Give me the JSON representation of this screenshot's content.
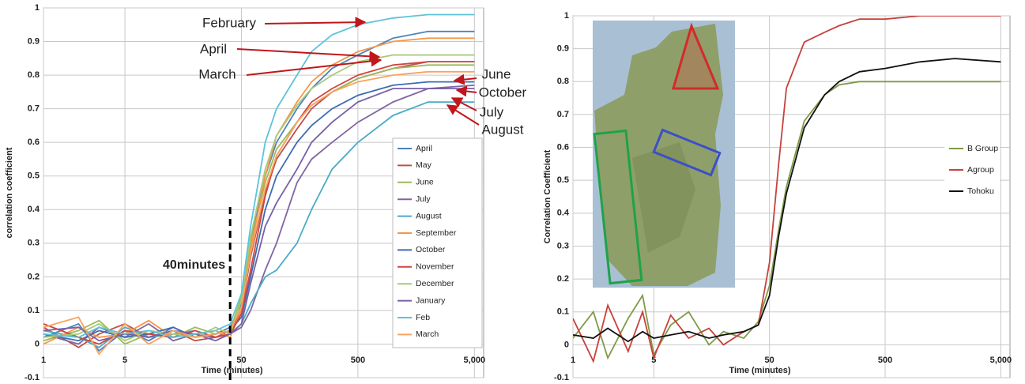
{
  "chart_data": [
    {
      "type": "line",
      "xlabel": "Time (minutes)",
      "ylabel": "correlation coefficient",
      "xlog": true,
      "grid": true,
      "legend": "right",
      "xlim": [
        1,
        6000
      ],
      "ylim": [
        -0.1,
        1
      ],
      "xticks": [
        1,
        5,
        50,
        500,
        {
          "value": 5000,
          "label": "5,000"
        }
      ],
      "yticks": [
        -0.1,
        0,
        0.1,
        0.2,
        0.3,
        0.4,
        0.5,
        0.6,
        0.7,
        0.8,
        0.9,
        1
      ],
      "vline": 40,
      "vline_label": "40minutes",
      "annotations": [
        "February",
        "April",
        "March",
        "June",
        "October",
        "July",
        "August"
      ],
      "x": [
        1,
        2,
        3,
        5,
        8,
        13,
        20,
        30,
        40,
        50,
        60,
        80,
        100,
        150,
        200,
        300,
        500,
        1000,
        2000,
        5000
      ],
      "series": [
        {
          "name": "April",
          "color": "#4f81bd",
          "values": [
            0.02,
            0.06,
            -0.02,
            0.04,
            0.01,
            0.05,
            0.02,
            0.03,
            0.05,
            0.12,
            0.3,
            0.5,
            0.6,
            0.7,
            0.76,
            0.82,
            0.86,
            0.91,
            0.93,
            0.93
          ]
        },
        {
          "name": "May",
          "color": "#c0504d",
          "values": [
            0.05,
            -0.01,
            0.03,
            0.06,
            0.02,
            0.04,
            0.01,
            0.02,
            0.04,
            0.1,
            0.26,
            0.45,
            0.55,
            0.64,
            0.7,
            0.75,
            0.79,
            0.82,
            0.84,
            0.84
          ]
        },
        {
          "name": "June",
          "color": "#9bbb59",
          "values": [
            0.01,
            0.04,
            0.07,
            0.0,
            0.03,
            0.02,
            0.05,
            0.03,
            0.04,
            0.14,
            0.3,
            0.48,
            0.58,
            0.66,
            0.71,
            0.75,
            0.79,
            0.82,
            0.83,
            0.83
          ]
        },
        {
          "name": "July",
          "color": "#8064a2",
          "values": [
            0.03,
            0.0,
            0.05,
            0.02,
            0.06,
            0.01,
            0.03,
            0.02,
            0.03,
            0.05,
            0.1,
            0.22,
            0.3,
            0.48,
            0.55,
            0.6,
            0.66,
            0.72,
            0.76,
            0.77
          ]
        },
        {
          "name": "August",
          "color": "#4bacc6",
          "values": [
            0.04,
            0.02,
            -0.01,
            0.05,
            0.02,
            0.03,
            0.04,
            0.02,
            0.03,
            0.06,
            0.12,
            0.2,
            0.22,
            0.3,
            0.4,
            0.52,
            0.6,
            0.68,
            0.72,
            0.72
          ]
        },
        {
          "name": "September",
          "color": "#f79646",
          "values": [
            0.0,
            0.05,
            0.02,
            0.03,
            0.07,
            0.02,
            0.03,
            0.04,
            0.02,
            0.1,
            0.28,
            0.5,
            0.62,
            0.72,
            0.78,
            0.83,
            0.87,
            0.9,
            0.91,
            0.91
          ]
        },
        {
          "name": "October",
          "color": "#3a6db0",
          "values": [
            0.03,
            0.01,
            0.04,
            0.02,
            0.03,
            0.05,
            0.02,
            0.03,
            0.04,
            0.08,
            0.2,
            0.4,
            0.5,
            0.6,
            0.65,
            0.7,
            0.74,
            0.77,
            0.78,
            0.78
          ]
        },
        {
          "name": "November",
          "color": "#d0453f",
          "values": [
            0.06,
            0.02,
            0.0,
            0.04,
            0.03,
            0.02,
            0.04,
            0.02,
            0.03,
            0.09,
            0.22,
            0.44,
            0.56,
            0.66,
            0.72,
            0.76,
            0.8,
            0.83,
            0.84,
            0.84
          ]
        },
        {
          "name": "December",
          "color": "#a9c97a",
          "values": [
            0.02,
            0.03,
            0.06,
            0.01,
            0.04,
            0.03,
            0.02,
            0.05,
            0.03,
            0.13,
            0.32,
            0.52,
            0.62,
            0.71,
            0.76,
            0.8,
            0.84,
            0.86,
            0.86,
            0.86
          ]
        },
        {
          "name": "January",
          "color": "#7660a8",
          "values": [
            0.04,
            0.05,
            0.01,
            0.03,
            0.02,
            0.04,
            0.03,
            0.01,
            0.03,
            0.06,
            0.18,
            0.35,
            0.42,
            0.52,
            0.6,
            0.66,
            0.72,
            0.76,
            0.76,
            0.76
          ]
        },
        {
          "name": "Feb",
          "color": "#5cc3d9",
          "values": [
            0.03,
            0.02,
            0.05,
            0.03,
            0.04,
            0.02,
            0.03,
            0.04,
            0.06,
            0.15,
            0.35,
            0.6,
            0.7,
            0.8,
            0.87,
            0.92,
            0.95,
            0.97,
            0.98,
            0.98
          ]
        },
        {
          "name": "March",
          "color": "#f8a35e",
          "values": [
            0.05,
            0.08,
            -0.03,
            0.06,
            0.0,
            0.04,
            0.02,
            0.03,
            0.04,
            0.11,
            0.27,
            0.46,
            0.56,
            0.66,
            0.71,
            0.75,
            0.78,
            0.8,
            0.81,
            0.81
          ]
        }
      ]
    },
    {
      "type": "line",
      "xlabel": "Time (minutes)",
      "ylabel": "Correlation Coefficient",
      "xlog": true,
      "grid": true,
      "legend": "right",
      "xlim": [
        1,
        6000
      ],
      "ylim": [
        -0.1,
        1
      ],
      "xticks": [
        1,
        5,
        50,
        500,
        {
          "value": 5000,
          "label": "5,000"
        }
      ],
      "yticks": [
        -0.1,
        0,
        0.1,
        0.2,
        0.3,
        0.4,
        0.5,
        0.6,
        0.7,
        0.8,
        0.9,
        1
      ],
      "x": [
        1,
        1.5,
        2,
        3,
        4,
        5,
        7,
        10,
        15,
        20,
        30,
        40,
        50,
        60,
        70,
        100,
        150,
        200,
        300,
        500,
        1000,
        2000,
        5000
      ],
      "series": [
        {
          "name": "B Group",
          "color": "#7f9a48",
          "values": [
            0.02,
            0.1,
            -0.04,
            0.08,
            0.15,
            -0.03,
            0.06,
            0.1,
            0.0,
            0.04,
            0.02,
            0.07,
            0.18,
            0.35,
            0.48,
            0.68,
            0.76,
            0.79,
            0.8,
            0.8,
            0.8,
            0.8,
            0.8
          ]
        },
        {
          "name": "Agroup",
          "color": "#c9403c",
          "values": [
            0.08,
            -0.05,
            0.12,
            -0.02,
            0.1,
            -0.04,
            0.09,
            0.02,
            0.05,
            0.0,
            0.04,
            0.06,
            0.25,
            0.55,
            0.78,
            0.92,
            0.95,
            0.97,
            0.99,
            0.99,
            1.0,
            1.0,
            1.0
          ]
        },
        {
          "name": "Tohoku",
          "color": "#111111",
          "values": [
            0.03,
            0.02,
            0.05,
            0.01,
            0.04,
            0.02,
            0.03,
            0.04,
            0.02,
            0.03,
            0.04,
            0.06,
            0.15,
            0.33,
            0.46,
            0.66,
            0.76,
            0.8,
            0.83,
            0.84,
            0.86,
            0.87,
            0.86
          ]
        }
      ]
    }
  ]
}
